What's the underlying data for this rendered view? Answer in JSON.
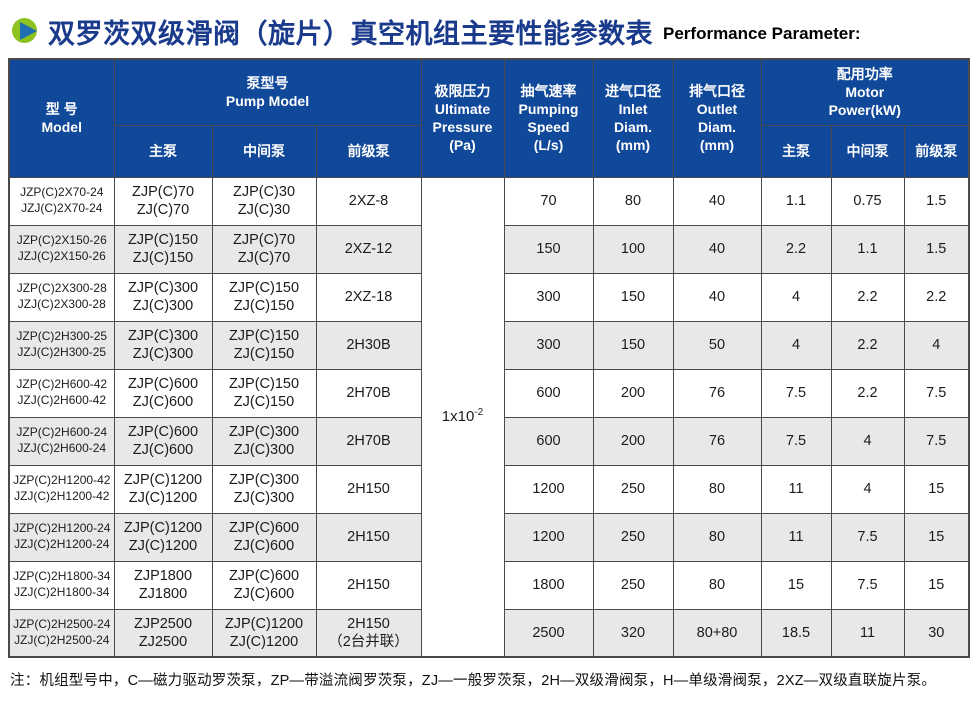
{
  "theme": {
    "header_blue": "#10489a",
    "title_blue": "#1a3a8c",
    "row_alt_gray": "#e8e8e8",
    "icon_green": "#8dc21f",
    "icon_triangle_blue": "#1e6eb4",
    "border": "#4a4a4a"
  },
  "title": {
    "zh": "双罗茨双级滑阀（旋片）真空机组主要性能参数表",
    "en": "Performance Parameter:"
  },
  "table": {
    "columns": {
      "model": "型  号\nModel",
      "pump_model": "泵型号\nPump Model",
      "sub_main": "主泵",
      "sub_middle": "中间泵",
      "sub_fore": "前级泵",
      "ultimate_pressure": "极限压力\nUltimate\nPressure\n(Pa)",
      "pumping_speed": "抽气速率\nPumping\nSpeed\n(L/s)",
      "inlet_diam": "进气口径\nInlet\nDiam.\n(mm)",
      "outlet_diam": "排气口径\nOutlet\nDiam.\n(mm)",
      "motor_power": "配用功率\nMotor\nPower(kW)",
      "power_main": "主泵",
      "power_middle": "中间泵",
      "power_fore": "前级泵"
    },
    "ultimate_pressure_value": {
      "base": "1x10",
      "exp": "-2"
    },
    "rows": [
      {
        "model": "JZP(C)2X70-24\nJZJ(C)2X70-24",
        "main": "ZJP(C)70\nZJ(C)70",
        "middle": "ZJP(C)30\nZJ(C)30",
        "fore": "2XZ-8",
        "speed": "70",
        "inlet": "80",
        "outlet": "40",
        "p_main": "1.1",
        "p_middle": "0.75",
        "p_fore": "1.5"
      },
      {
        "model": "JZP(C)2X150-26\nJZJ(C)2X150-26",
        "main": "ZJP(C)150\nZJ(C)150",
        "middle": "ZJP(C)70\nZJ(C)70",
        "fore": "2XZ-12",
        "speed": "150",
        "inlet": "100",
        "outlet": "40",
        "p_main": "2.2",
        "p_middle": "1.1",
        "p_fore": "1.5"
      },
      {
        "model": "JZP(C)2X300-28\nJZJ(C)2X300-28",
        "main": "ZJP(C)300\nZJ(C)300",
        "middle": "ZJP(C)150\nZJ(C)150",
        "fore": "2XZ-18",
        "speed": "300",
        "inlet": "150",
        "outlet": "40",
        "p_main": "4",
        "p_middle": "2.2",
        "p_fore": "2.2"
      },
      {
        "model": "JZP(C)2H300-25\nJZJ(C)2H300-25",
        "main": "ZJP(C)300\nZJ(C)300",
        "middle": "ZJP(C)150\nZJ(C)150",
        "fore": "2H30B",
        "speed": "300",
        "inlet": "150",
        "outlet": "50",
        "p_main": "4",
        "p_middle": "2.2",
        "p_fore": "4"
      },
      {
        "model": "JZP(C)2H600-42\nJZJ(C)2H600-42",
        "main": "ZJP(C)600\nZJ(C)600",
        "middle": "ZJP(C)150\nZJ(C)150",
        "fore": "2H70B",
        "speed": "600",
        "inlet": "200",
        "outlet": "76",
        "p_main": "7.5",
        "p_middle": "2.2",
        "p_fore": "7.5"
      },
      {
        "model": "JZP(C)2H600-24\nJZJ(C)2H600-24",
        "main": "ZJP(C)600\nZJ(C)600",
        "middle": "ZJP(C)300\nZJ(C)300",
        "fore": "2H70B",
        "speed": "600",
        "inlet": "200",
        "outlet": "76",
        "p_main": "7.5",
        "p_middle": "4",
        "p_fore": "7.5"
      },
      {
        "model": "JZP(C)2H1200-42\nJZJ(C)2H1200-42",
        "main": "ZJP(C)1200\nZJ(C)1200",
        "middle": "ZJP(C)300\nZJ(C)300",
        "fore": "2H150",
        "speed": "1200",
        "inlet": "250",
        "outlet": "80",
        "p_main": "11",
        "p_middle": "4",
        "p_fore": "15"
      },
      {
        "model": "JZP(C)2H1200-24\nJZJ(C)2H1200-24",
        "main": "ZJP(C)1200\nZJ(C)1200",
        "middle": "ZJP(C)600\nZJ(C)600",
        "fore": "2H150",
        "speed": "1200",
        "inlet": "250",
        "outlet": "80",
        "p_main": "11",
        "p_middle": "7.5",
        "p_fore": "15"
      },
      {
        "model": "JZP(C)2H1800-34\nJZJ(C)2H1800-34",
        "main": "ZJP1800\nZJ1800",
        "middle": "ZJP(C)600\nZJ(C)600",
        "fore": "2H150",
        "speed": "1800",
        "inlet": "250",
        "outlet": "80",
        "p_main": "15",
        "p_middle": "7.5",
        "p_fore": "15"
      },
      {
        "model": "JZP(C)2H2500-24\nJZJ(C)2H2500-24",
        "main": "ZJP2500\nZJ2500",
        "middle": "ZJP(C)1200\nZJ(C)1200",
        "fore": "2H150\n（2台并联）",
        "speed": "2500",
        "inlet": "320",
        "outlet": "80+80",
        "p_main": "18.5",
        "p_middle": "11",
        "p_fore": "30"
      }
    ]
  },
  "note": "注：机组型号中，C—磁力驱动罗茨泵，ZP—带溢流阀罗茨泵，ZJ—一般罗茨泵，2H—双级滑阀泵，H—单级滑阀泵，2XZ—双级直联旋片泵。"
}
